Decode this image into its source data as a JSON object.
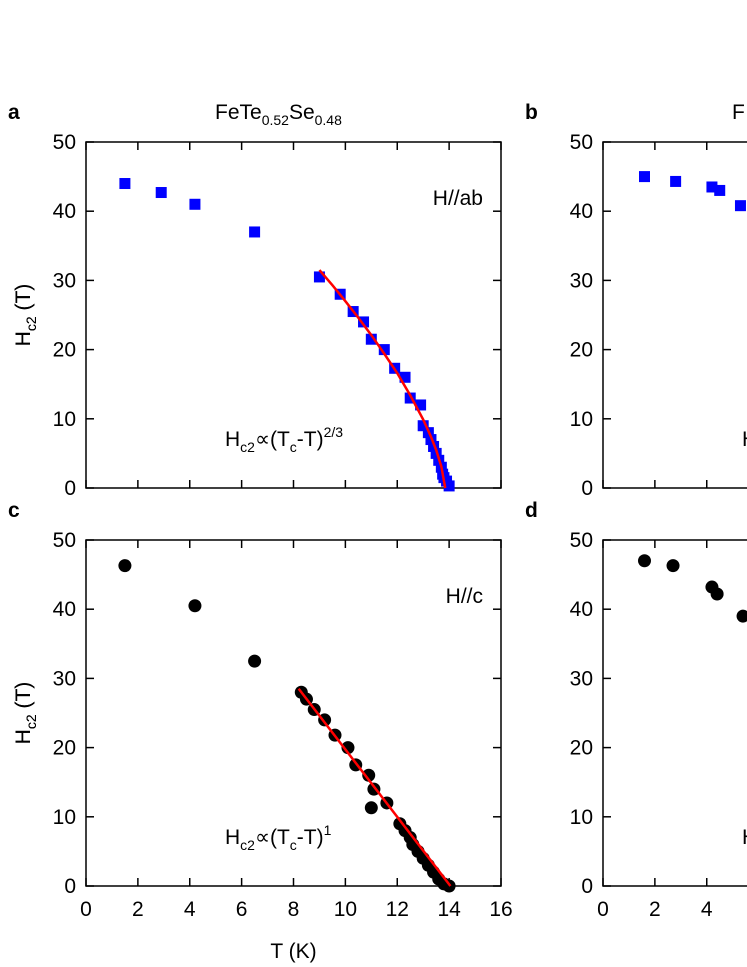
{
  "chart_data": [
    {
      "type": "scatter",
      "panel_label": "a",
      "title": [
        {
          "text": "FeTe"
        },
        {
          "text": "0.52",
          "sub": true
        },
        {
          "text": "Se"
        },
        {
          "text": "0.48",
          "sub": true
        }
      ],
      "ylabel": [
        {
          "text": "H"
        },
        {
          "text": "c2",
          "sub": true
        },
        {
          "text": " (T)"
        }
      ],
      "xlim": [
        0,
        16
      ],
      "ylim": [
        0,
        50
      ],
      "xticks": [
        0,
        2,
        4,
        6,
        8,
        10,
        12,
        14,
        16
      ],
      "yticks": [
        0,
        10,
        20,
        30,
        40,
        50
      ],
      "show_xtick_labels": false,
      "series": [
        {
          "marker": "square",
          "color": "#0000ff",
          "x": [
            1.5,
            2.9,
            4.2,
            6.5,
            9,
            9.8,
            10.3,
            10.7,
            11,
            11.5,
            11.9,
            12.3,
            12.5,
            12.9,
            13.0,
            13.2,
            13.3,
            13.4,
            13.5,
            13.6,
            13.7,
            13.75,
            13.8,
            13.9,
            14.0
          ],
          "values": [
            44,
            42.7,
            41,
            37,
            30.5,
            28,
            25.5,
            24,
            21.5,
            20,
            17.3,
            16,
            13,
            12,
            9,
            8,
            7,
            6,
            5,
            4,
            3,
            2,
            1.5,
            1,
            0.3
          ]
        },
        {
          "marker": "line",
          "color": "#ff0000",
          "x": [
            9,
            9.5,
            10,
            10.5,
            11,
            11.5,
            12,
            12.5,
            13,
            13.3,
            13.5,
            13.7,
            13.85
          ],
          "values": [
            31.5,
            29.3,
            27.0,
            24.6,
            22.1,
            19.4,
            16.6,
            13.4,
            9.9,
            7.4,
            5.5,
            3.1,
            0
          ]
        }
      ],
      "annotations": [
        {
          "corner": "upper right",
          "color": "#0000ff",
          "text": [
            {
              "text": "H//ab"
            }
          ]
        },
        {
          "corner": "lower center",
          "color": "#000000",
          "text": [
            {
              "text": "H"
            },
            {
              "text": "c2",
              "sub": true
            },
            {
              "text": "∝(T"
            },
            {
              "text": "c",
              "sub": true
            },
            {
              "text": "-T)"
            },
            {
              "text": "2/3",
              "sup": true
            }
          ]
        }
      ]
    },
    {
      "type": "scatter",
      "panel_label": "b",
      "title": [
        {
          "text": "F"
        }
      ],
      "ylabel": [
        {
          "text": "H"
        },
        {
          "text": "c2",
          "sub": true
        },
        {
          "text": " (T)"
        }
      ],
      "xlim": [
        0,
        16
      ],
      "ylim": [
        0,
        50
      ],
      "xticks": [
        0,
        2,
        4,
        6,
        8,
        10,
        12,
        14,
        16
      ],
      "yticks": [
        0,
        10,
        20,
        30,
        40,
        50
      ],
      "show_xtick_labels": false,
      "series": [
        {
          "marker": "square",
          "color": "#0000ff",
          "x": [
            1.6,
            2.8,
            4.2,
            4.5,
            5.3
          ],
          "values": [
            45,
            44.3,
            43.5,
            43,
            40.8
          ]
        }
      ],
      "annotations": [
        {
          "corner": "lower center",
          "color": "#000000",
          "text": [
            {
              "text": "H"
            }
          ]
        }
      ]
    },
    {
      "type": "scatter",
      "panel_label": "c",
      "ylabel": [
        {
          "text": "H"
        },
        {
          "text": "c2",
          "sub": true
        },
        {
          "text": " (T)"
        }
      ],
      "xlabel": "T (K)",
      "xlim": [
        0,
        16
      ],
      "ylim": [
        0,
        50
      ],
      "xticks": [
        0,
        2,
        4,
        6,
        8,
        10,
        12,
        14,
        16
      ],
      "yticks": [
        0,
        10,
        20,
        30,
        40,
        50
      ],
      "show_xtick_labels": true,
      "series": [
        {
          "marker": "circle",
          "color": "#000000",
          "x": [
            1.5,
            4.2,
            6.5,
            8.3,
            8.5,
            8.8,
            9.2,
            9.6,
            10.1,
            10.4,
            10.9,
            11.0,
            11.1,
            11.6,
            12.1,
            12.3,
            12.5,
            12.6,
            12.8,
            13.0,
            13.2,
            13.4,
            13.6,
            13.8,
            14.0
          ],
          "values": [
            46.3,
            40.5,
            32.5,
            28,
            27,
            25.5,
            24,
            21.8,
            20,
            17.5,
            16,
            11.3,
            14,
            12,
            9,
            8,
            7,
            6,
            5,
            4,
            3,
            2,
            1,
            0.3,
            0
          ]
        },
        {
          "marker": "line",
          "color": "#ff0000",
          "x": [
            8.2,
            14.05
          ],
          "values": [
            28.5,
            0
          ]
        }
      ],
      "annotations": [
        {
          "corner": "upper right",
          "color": "#000000",
          "text": [
            {
              "text": "H//c"
            }
          ]
        },
        {
          "corner": "lower center",
          "color": "#000000",
          "text": [
            {
              "text": "H"
            },
            {
              "text": "c2",
              "sub": true
            },
            {
              "text": "∝(T"
            },
            {
              "text": "c",
              "sub": true
            },
            {
              "text": "-T)"
            },
            {
              "text": "1",
              "sup": true
            }
          ]
        }
      ]
    },
    {
      "type": "scatter",
      "panel_label": "d",
      "ylabel": [
        {
          "text": "H"
        },
        {
          "text": "c2",
          "sub": true
        },
        {
          "text": " (T)"
        }
      ],
      "xlim": [
        0,
        16
      ],
      "ylim": [
        0,
        50
      ],
      "xticks": [
        0,
        2,
        4,
        6,
        8,
        10,
        12,
        14,
        16
      ],
      "yticks": [
        0,
        10,
        20,
        30,
        40,
        50
      ],
      "show_xtick_labels": true,
      "series": [
        {
          "marker": "circle",
          "color": "#000000",
          "x": [
            1.6,
            2.7,
            4.2,
            4.4,
            5.4
          ],
          "values": [
            47,
            46.3,
            43.2,
            42.2,
            39
          ]
        }
      ],
      "annotations": [
        {
          "corner": "lower center",
          "color": "#000000",
          "text": [
            {
              "text": "H"
            }
          ]
        }
      ]
    }
  ]
}
